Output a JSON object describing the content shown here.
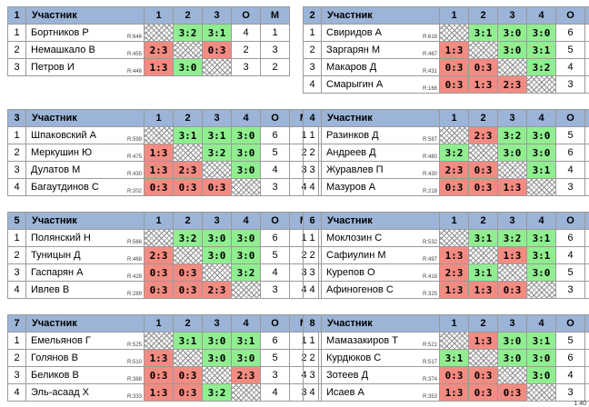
{
  "version": "1.40",
  "header": {
    "participant": "Участник",
    "o": "О",
    "m": "М"
  },
  "groups": [
    {
      "number": "1",
      "cols": [
        "1",
        "2",
        "3"
      ],
      "rows": [
        {
          "n": "1",
          "name": "Бортников Р",
          "rating": "R:646",
          "cells": [
            {
              "t": "x",
              "v": ""
            },
            {
              "t": "w",
              "v": "3:2"
            },
            {
              "t": "w",
              "v": "3:1"
            }
          ],
          "o": "4",
          "m": "1"
        },
        {
          "n": "2",
          "name": "Немашкало В",
          "rating": "R:455",
          "cells": [
            {
              "t": "l",
              "v": "2:3"
            },
            {
              "t": "x",
              "v": ""
            },
            {
              "t": "l",
              "v": "0:3"
            }
          ],
          "o": "2",
          "m": "3"
        },
        {
          "n": "3",
          "name": "Петров И",
          "rating": "R:446",
          "cells": [
            {
              "t": "l",
              "v": "1:3"
            },
            {
              "t": "w",
              "v": "3:0"
            },
            {
              "t": "x",
              "v": ""
            }
          ],
          "o": "3",
          "m": "2"
        }
      ]
    },
    {
      "number": "2",
      "cols": [
        "1",
        "2",
        "3",
        "4"
      ],
      "rows": [
        {
          "n": "1",
          "name": "Свиридов А",
          "rating": "R:618",
          "cells": [
            {
              "t": "x",
              "v": ""
            },
            {
              "t": "w",
              "v": "3:1"
            },
            {
              "t": "w",
              "v": "3:0"
            },
            {
              "t": "w",
              "v": "3:0"
            }
          ],
          "o": "6",
          "m": "1"
        },
        {
          "n": "2",
          "name": "Заргарян М",
          "rating": "R:467",
          "cells": [
            {
              "t": "l",
              "v": "1:3"
            },
            {
              "t": "x",
              "v": ""
            },
            {
              "t": "w",
              "v": "3:0"
            },
            {
              "t": "w",
              "v": "3:1"
            }
          ],
          "o": "5",
          "m": "2"
        },
        {
          "n": "3",
          "name": "Макаров Д",
          "rating": "R:431",
          "cells": [
            {
              "t": "l",
              "v": "0:3"
            },
            {
              "t": "l",
              "v": "0:3"
            },
            {
              "t": "x",
              "v": ""
            },
            {
              "t": "w",
              "v": "3:2"
            }
          ],
          "o": "4",
          "m": "3"
        },
        {
          "n": "4",
          "name": "Смарыгин А",
          "rating": "R:166",
          "cells": [
            {
              "t": "l",
              "v": "0:3"
            },
            {
              "t": "l",
              "v": "1:3"
            },
            {
              "t": "l",
              "v": "2:3"
            },
            {
              "t": "x",
              "v": ""
            }
          ],
          "o": "3",
          "m": "4"
        }
      ]
    },
    {
      "number": "3",
      "cols": [
        "1",
        "2",
        "3",
        "4"
      ],
      "rows": [
        {
          "n": "1",
          "name": "Шпаковский А",
          "rating": "R:599",
          "cells": [
            {
              "t": "x",
              "v": ""
            },
            {
              "t": "w",
              "v": "3:1"
            },
            {
              "t": "w",
              "v": "3:1"
            },
            {
              "t": "w",
              "v": "3:0"
            }
          ],
          "o": "6",
          "m": "1"
        },
        {
          "n": "2",
          "name": "Меркушин Ю",
          "rating": "R:475",
          "cells": [
            {
              "t": "l",
              "v": "1:3"
            },
            {
              "t": "x",
              "v": ""
            },
            {
              "t": "w",
              "v": "3:2"
            },
            {
              "t": "w",
              "v": "3:0"
            }
          ],
          "o": "5",
          "m": "2"
        },
        {
          "n": "3",
          "name": "Дулатов М",
          "rating": "R:430",
          "cells": [
            {
              "t": "l",
              "v": "1:3"
            },
            {
              "t": "l",
              "v": "2:3"
            },
            {
              "t": "x",
              "v": ""
            },
            {
              "t": "w",
              "v": "3:0"
            }
          ],
          "o": "4",
          "m": "3"
        },
        {
          "n": "4",
          "name": "Багаутдинов С",
          "rating": "R:202",
          "cells": [
            {
              "t": "l",
              "v": "0:3"
            },
            {
              "t": "l",
              "v": "0:3"
            },
            {
              "t": "l",
              "v": "0:3"
            },
            {
              "t": "x",
              "v": ""
            }
          ],
          "o": "3",
          "m": "4"
        }
      ]
    },
    {
      "number": "4",
      "cols": [
        "1",
        "2",
        "3",
        "4"
      ],
      "rows": [
        {
          "n": "1",
          "name": "Разинков Д",
          "rating": "R:587",
          "cells": [
            {
              "t": "x",
              "v": ""
            },
            {
              "t": "l",
              "v": "2:3"
            },
            {
              "t": "w",
              "v": "3:2"
            },
            {
              "t": "w",
              "v": "3:0"
            }
          ],
          "o": "5",
          "m": "2"
        },
        {
          "n": "2",
          "name": "Андреев Д",
          "rating": "R:480",
          "cells": [
            {
              "t": "w",
              "v": "3:2"
            },
            {
              "t": "x",
              "v": ""
            },
            {
              "t": "w",
              "v": "3:0"
            },
            {
              "t": "w",
              "v": "3:0"
            }
          ],
          "o": "6",
          "m": "1"
        },
        {
          "n": "3",
          "name": "Журавлев П",
          "rating": "R:430",
          "cells": [
            {
              "t": "l",
              "v": "2:3"
            },
            {
              "t": "l",
              "v": "0:3"
            },
            {
              "t": "x",
              "v": ""
            },
            {
              "t": "w",
              "v": "3:1"
            }
          ],
          "o": "4",
          "m": "3"
        },
        {
          "n": "4",
          "name": "Мазуров А",
          "rating": "R:218",
          "cells": [
            {
              "t": "l",
              "v": "0:3"
            },
            {
              "t": "l",
              "v": "0:3"
            },
            {
              "t": "l",
              "v": "1:3"
            },
            {
              "t": "x",
              "v": ""
            }
          ],
          "o": "3",
          "m": "4"
        }
      ]
    },
    {
      "number": "5",
      "cols": [
        "1",
        "2",
        "3",
        "4"
      ],
      "rows": [
        {
          "n": "1",
          "name": "Полянский Н",
          "rating": "R:566",
          "cells": [
            {
              "t": "x",
              "v": ""
            },
            {
              "t": "w",
              "v": "3:2"
            },
            {
              "t": "w",
              "v": "3:0"
            },
            {
              "t": "w",
              "v": "3:0"
            }
          ],
          "o": "6",
          "m": "1"
        },
        {
          "n": "2",
          "name": "Туницын Д",
          "rating": "R:468",
          "cells": [
            {
              "t": "l",
              "v": "2:3"
            },
            {
              "t": "x",
              "v": ""
            },
            {
              "t": "w",
              "v": "3:0"
            },
            {
              "t": "w",
              "v": "3:0"
            }
          ],
          "o": "5",
          "m": "2"
        },
        {
          "n": "3",
          "name": "Гаспарян А",
          "rating": "R:428",
          "cells": [
            {
              "t": "l",
              "v": "0:3"
            },
            {
              "t": "l",
              "v": "0:3"
            },
            {
              "t": "x",
              "v": ""
            },
            {
              "t": "w",
              "v": "3:2"
            }
          ],
          "o": "4",
          "m": "3"
        },
        {
          "n": "4",
          "name": "Ивлев В",
          "rating": "R:289",
          "cells": [
            {
              "t": "l",
              "v": "0:3"
            },
            {
              "t": "l",
              "v": "0:3"
            },
            {
              "t": "l",
              "v": "2:3"
            },
            {
              "t": "x",
              "v": ""
            }
          ],
          "o": "3",
          "m": "4"
        }
      ]
    },
    {
      "number": "6",
      "cols": [
        "1",
        "2",
        "3",
        "4"
      ],
      "rows": [
        {
          "n": "1",
          "name": "Моклозин С",
          "rating": "R:532",
          "cells": [
            {
              "t": "x",
              "v": ""
            },
            {
              "t": "w",
              "v": "3:1"
            },
            {
              "t": "w",
              "v": "3:2"
            },
            {
              "t": "w",
              "v": "3:1"
            }
          ],
          "o": "6",
          "m": "1"
        },
        {
          "n": "2",
          "name": "Сафиулин М",
          "rating": "R:497",
          "cells": [
            {
              "t": "l",
              "v": "1:3"
            },
            {
              "t": "x",
              "v": ""
            },
            {
              "t": "l",
              "v": "1:3"
            },
            {
              "t": "w",
              "v": "3:1"
            }
          ],
          "o": "4",
          "m": "3"
        },
        {
          "n": "3",
          "name": "Курепов О",
          "rating": "R:418",
          "cells": [
            {
              "t": "l",
              "v": "2:3"
            },
            {
              "t": "w",
              "v": "3:1"
            },
            {
              "t": "x",
              "v": ""
            },
            {
              "t": "w",
              "v": "3:0"
            }
          ],
          "o": "5",
          "m": "2"
        },
        {
          "n": "4",
          "name": "Афиногенов С",
          "rating": "R:325",
          "cells": [
            {
              "t": "l",
              "v": "1:3"
            },
            {
              "t": "l",
              "v": "1:3"
            },
            {
              "t": "l",
              "v": "0:3"
            },
            {
              "t": "x",
              "v": ""
            }
          ],
          "o": "3",
          "m": "4"
        }
      ]
    },
    {
      "number": "7",
      "cols": [
        "1",
        "2",
        "3",
        "4"
      ],
      "rows": [
        {
          "n": "1",
          "name": "Емельянов Г",
          "rating": "R:525",
          "cells": [
            {
              "t": "x",
              "v": ""
            },
            {
              "t": "w",
              "v": "3:1"
            },
            {
              "t": "w",
              "v": "3:0"
            },
            {
              "t": "w",
              "v": "3:1"
            }
          ],
          "o": "6",
          "m": "1"
        },
        {
          "n": "2",
          "name": "Голянов В",
          "rating": "R:510",
          "cells": [
            {
              "t": "l",
              "v": "1:3"
            },
            {
              "t": "x",
              "v": ""
            },
            {
              "t": "w",
              "v": "3:0"
            },
            {
              "t": "w",
              "v": "3:0"
            }
          ],
          "o": "5",
          "m": "2"
        },
        {
          "n": "3",
          "name": "Беликов В",
          "rating": "R:388",
          "cells": [
            {
              "t": "l",
              "v": "0:3"
            },
            {
              "t": "l",
              "v": "0:3"
            },
            {
              "t": "x",
              "v": ""
            },
            {
              "t": "l",
              "v": "2:3"
            }
          ],
          "o": "3",
          "m": "4"
        },
        {
          "n": "4",
          "name": "Эль-асаад Х",
          "rating": "R:333",
          "cells": [
            {
              "t": "l",
              "v": "1:3"
            },
            {
              "t": "l",
              "v": "0:3"
            },
            {
              "t": "w",
              "v": "3:2"
            },
            {
              "t": "x",
              "v": ""
            }
          ],
          "o": "4",
          "m": "3"
        }
      ]
    },
    {
      "number": "8",
      "cols": [
        "1",
        "2",
        "3",
        "4"
      ],
      "rows": [
        {
          "n": "1",
          "name": "Мамазакиров Т",
          "rating": "R:521",
          "cells": [
            {
              "t": "x",
              "v": ""
            },
            {
              "t": "l",
              "v": "1:3"
            },
            {
              "t": "w",
              "v": "3:0"
            },
            {
              "t": "w",
              "v": "3:1"
            }
          ],
          "o": "5",
          "m": "2"
        },
        {
          "n": "2",
          "name": "Курдюков С",
          "rating": "R:517",
          "cells": [
            {
              "t": "w",
              "v": "3:1"
            },
            {
              "t": "x",
              "v": ""
            },
            {
              "t": "w",
              "v": "3:0"
            },
            {
              "t": "w",
              "v": "3:0"
            }
          ],
          "o": "6",
          "m": "1"
        },
        {
          "n": "3",
          "name": "Зотеев Д",
          "rating": "R:374",
          "cells": [
            {
              "t": "l",
              "v": "0:3"
            },
            {
              "t": "l",
              "v": "0:3"
            },
            {
              "t": "x",
              "v": ""
            },
            {
              "t": "w",
              "v": "3:0"
            }
          ],
          "o": "4",
          "m": "3"
        },
        {
          "n": "4",
          "name": "Исаев А",
          "rating": "R:353",
          "cells": [
            {
              "t": "l",
              "v": "1:3"
            },
            {
              "t": "l",
              "v": "0:3"
            },
            {
              "t": "l",
              "v": "0:3"
            },
            {
              "t": "x",
              "v": ""
            }
          ],
          "o": "3",
          "m": "4"
        }
      ]
    }
  ]
}
